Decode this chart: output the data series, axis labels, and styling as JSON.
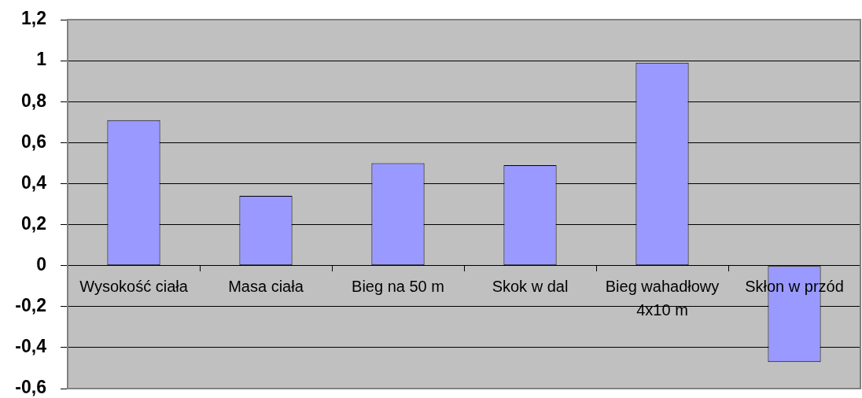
{
  "chart_data": {
    "type": "bar",
    "categories": [
      "Wysokość ciała",
      "Masa ciała",
      "Bieg na 50 m",
      "Skok w dal",
      "Bieg wahadłowy 4x10 m",
      "Skłon w przód"
    ],
    "values": [
      0.71,
      0.34,
      0.5,
      0.49,
      0.99,
      -0.47
    ],
    "color": "#9999ff",
    "ylim": [
      -0.6,
      1.2
    ],
    "yticks": [
      {
        "value": -0.6,
        "label": "-0,6"
      },
      {
        "value": -0.4,
        "label": "-0,4"
      },
      {
        "value": -0.2,
        "label": "-0,2"
      },
      0,
      {
        "value": 0.2,
        "label": "0,2"
      },
      {
        "value": 0.4,
        "label": "0,4"
      },
      {
        "value": 0.6,
        "label": "0,6"
      },
      {
        "value": 0.8,
        "label": "0,8"
      },
      1,
      {
        "value": 1.2,
        "label": "1,2"
      }
    ],
    "grid": "y"
  }
}
